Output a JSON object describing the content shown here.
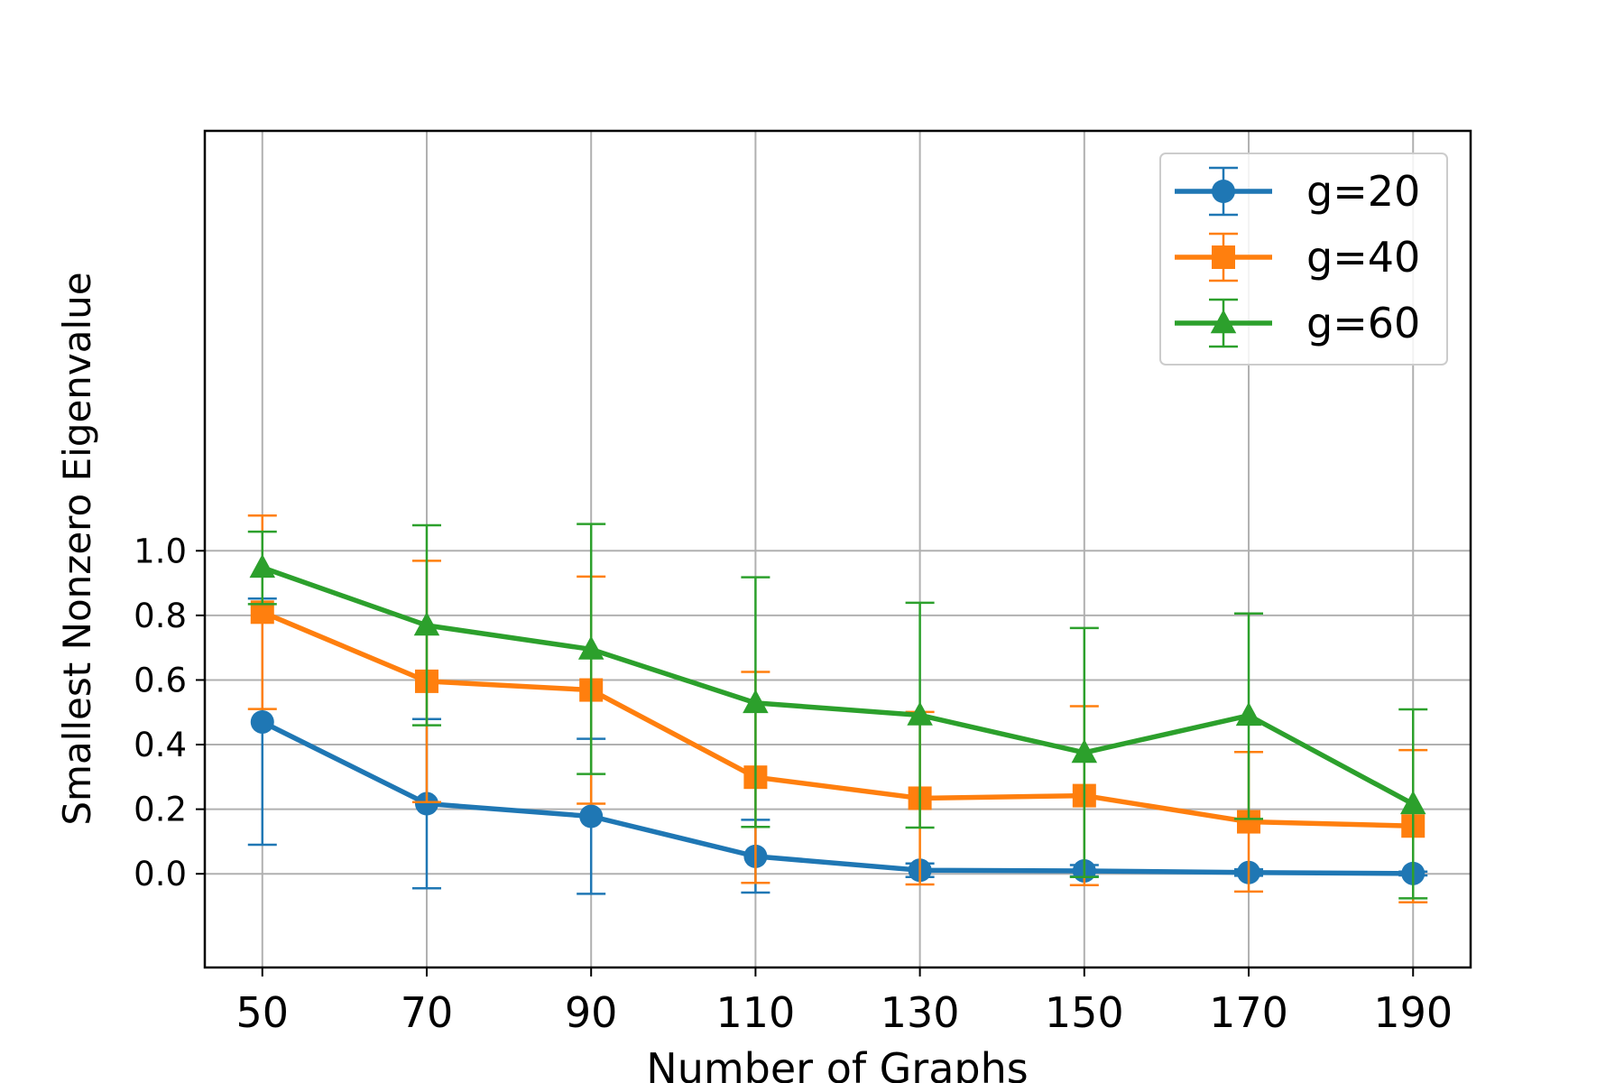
{
  "chart_data": {
    "type": "line",
    "title": "",
    "xlabel": "Number of Graphs",
    "ylabel": "Smallest Nonzero Eigenvalue",
    "x": [
      50,
      70,
      90,
      110,
      130,
      150,
      170,
      190
    ],
    "xticks": [
      "50",
      "70",
      "90",
      "110",
      "130",
      "150",
      "170",
      "190"
    ],
    "yticks": [
      "0.0",
      "0.2",
      "0.4",
      "0.6",
      "0.8",
      "1.0"
    ],
    "ytick_values": [
      0.0,
      0.2,
      0.4,
      0.6,
      0.8,
      1.0
    ],
    "xlim": [
      43,
      197
    ],
    "ylim": [
      -0.29,
      2.3
    ],
    "grid": true,
    "legend_position": "top-right",
    "series": [
      {
        "name": "g=20",
        "color": "#1f77b4",
        "marker": "circle",
        "values": [
          0.47,
          0.217,
          0.178,
          0.054,
          0.011,
          0.009,
          0.004,
          0.001
        ],
        "err_lower": [
          0.09,
          -0.045,
          -0.062,
          -0.058,
          -0.01,
          -0.008,
          -0.006,
          -0.005
        ],
        "err_upper": [
          0.852,
          0.479,
          0.418,
          0.167,
          0.032,
          0.027,
          0.014,
          0.007
        ]
      },
      {
        "name": "g=40",
        "color": "#ff7f0e",
        "marker": "square",
        "values": [
          0.81,
          0.596,
          0.569,
          0.299,
          0.234,
          0.242,
          0.161,
          0.148
        ],
        "err_lower": [
          0.51,
          0.222,
          0.217,
          -0.028,
          -0.033,
          -0.035,
          -0.055,
          -0.088
        ],
        "err_upper": [
          1.109,
          0.969,
          0.92,
          0.625,
          0.501,
          0.519,
          0.377,
          0.383
        ]
      },
      {
        "name": "g=60",
        "color": "#2ca02c",
        "marker": "triangle",
        "values": [
          0.948,
          0.769,
          0.695,
          0.529,
          0.491,
          0.375,
          0.49,
          0.216
        ],
        "err_lower": [
          0.835,
          0.46,
          0.309,
          0.145,
          0.143,
          -0.01,
          0.17,
          -0.076
        ],
        "err_upper": [
          1.059,
          1.079,
          1.083,
          0.918,
          0.839,
          0.761,
          0.806,
          0.509
        ]
      }
    ]
  }
}
